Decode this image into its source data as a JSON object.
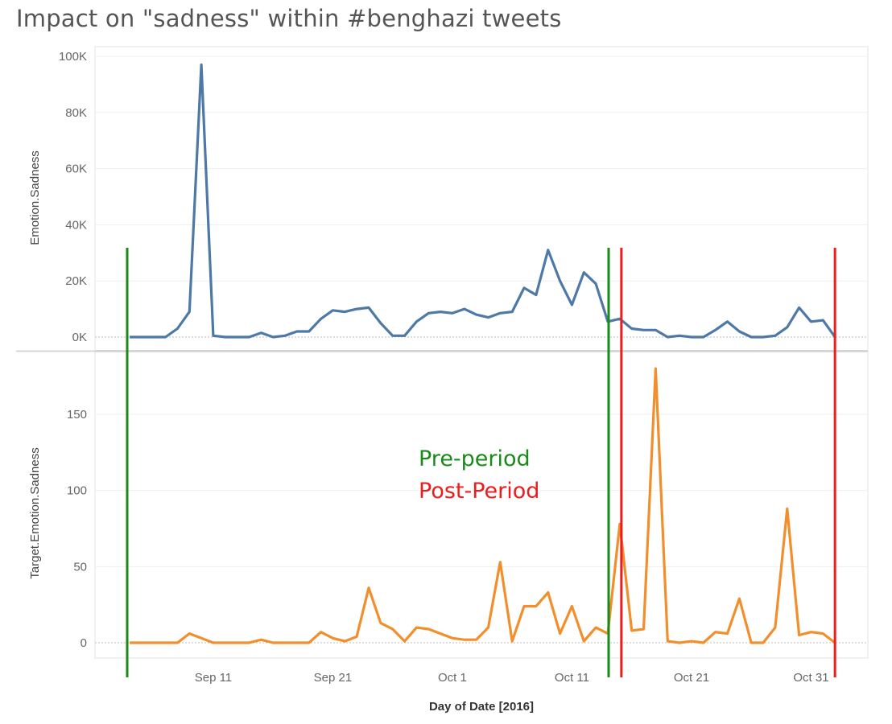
{
  "title": "Impact on \"sadness\" within #benghazi tweets",
  "chart_data": [
    {
      "type": "line",
      "title": "",
      "ylabel": "Emotion.Sadness",
      "xlabel": "Day of Date [2016]",
      "x_start": "2016-09-04",
      "x_end": "2016-11-02",
      "ylim": [
        0,
        100000
      ],
      "yticks": [
        0,
        20000,
        40000,
        60000,
        80000,
        100000
      ],
      "ytick_labels": [
        "0K",
        "20K",
        "40K",
        "60K",
        "80K",
        "100K"
      ],
      "grid": true,
      "color": "#4e79a7",
      "series": [
        {
          "name": "",
          "x": [
            "2016-09-04",
            "2016-09-05",
            "2016-09-06",
            "2016-09-07",
            "2016-09-08",
            "2016-09-09",
            "2016-09-10",
            "2016-09-11",
            "2016-09-12",
            "2016-09-13",
            "2016-09-14",
            "2016-09-15",
            "2016-09-16",
            "2016-09-17",
            "2016-09-18",
            "2016-09-19",
            "2016-09-20",
            "2016-09-21",
            "2016-09-22",
            "2016-09-23",
            "2016-09-24",
            "2016-09-25",
            "2016-09-26",
            "2016-09-27",
            "2016-09-28",
            "2016-09-29",
            "2016-09-30",
            "2016-10-01",
            "2016-10-02",
            "2016-10-03",
            "2016-10-04",
            "2016-10-05",
            "2016-10-06",
            "2016-10-07",
            "2016-10-08",
            "2016-10-09",
            "2016-10-10",
            "2016-10-11",
            "2016-10-12",
            "2016-10-13",
            "2016-10-14",
            "2016-10-15",
            "2016-10-16",
            "2016-10-17",
            "2016-10-18",
            "2016-10-19",
            "2016-10-20",
            "2016-10-21",
            "2016-10-22",
            "2016-10-23",
            "2016-10-24",
            "2016-10-25",
            "2016-10-26",
            "2016-10-27",
            "2016-10-28",
            "2016-10-29",
            "2016-10-30",
            "2016-10-31",
            "2016-11-01",
            "2016-11-02"
          ],
          "values": [
            0,
            0,
            0,
            0,
            3000,
            9000,
            97000,
            500,
            0,
            0,
            0,
            1500,
            0,
            500,
            2000,
            2000,
            6500,
            9500,
            9000,
            10000,
            10500,
            5000,
            500,
            500,
            5500,
            8500,
            9000,
            8500,
            10000,
            8000,
            7000,
            8500,
            9000,
            17500,
            15000,
            31000,
            20000,
            11500,
            23000,
            19000,
            5500,
            6500,
            3000,
            2500,
            2500,
            0,
            500,
            0,
            0,
            2500,
            5500,
            2000,
            0,
            0,
            500,
            3500,
            10500,
            5500,
            6000,
            0
          ]
        }
      ]
    },
    {
      "type": "line",
      "title": "",
      "ylabel": "Target.Emotion.Sadness",
      "xlabel": "Day of Date [2016]",
      "x_start": "2016-09-04",
      "x_end": "2016-11-02",
      "ylim": [
        -10,
        190
      ],
      "yticks": [
        0,
        50,
        100,
        150
      ],
      "ytick_labels": [
        "0",
        "50",
        "100",
        "150"
      ],
      "xtick_labels": [
        "Sep 11",
        "Sep 21",
        "Oct 1",
        "Oct 11",
        "Oct 21",
        "Oct 31"
      ],
      "grid": true,
      "color": "#f28e2b",
      "series": [
        {
          "name": "",
          "x": [
            "2016-09-04",
            "2016-09-05",
            "2016-09-06",
            "2016-09-07",
            "2016-09-08",
            "2016-09-09",
            "2016-09-10",
            "2016-09-11",
            "2016-09-12",
            "2016-09-13",
            "2016-09-14",
            "2016-09-15",
            "2016-09-16",
            "2016-09-17",
            "2016-09-18",
            "2016-09-19",
            "2016-09-20",
            "2016-09-21",
            "2016-09-22",
            "2016-09-23",
            "2016-09-24",
            "2016-09-25",
            "2016-09-26",
            "2016-09-27",
            "2016-09-28",
            "2016-09-29",
            "2016-09-30",
            "2016-10-01",
            "2016-10-02",
            "2016-10-03",
            "2016-10-04",
            "2016-10-05",
            "2016-10-06",
            "2016-10-07",
            "2016-10-08",
            "2016-10-09",
            "2016-10-10",
            "2016-10-11",
            "2016-10-12",
            "2016-10-13",
            "2016-10-14",
            "2016-10-15",
            "2016-10-16",
            "2016-10-17",
            "2016-10-18",
            "2016-10-19",
            "2016-10-20",
            "2016-10-21",
            "2016-10-22",
            "2016-10-23",
            "2016-10-24",
            "2016-10-25",
            "2016-10-26",
            "2016-10-27",
            "2016-10-28",
            "2016-10-29",
            "2016-10-30",
            "2016-10-31",
            "2016-11-01",
            "2016-11-02"
          ],
          "values": [
            0,
            0,
            0,
            0,
            0,
            6,
            3,
            0,
            0,
            0,
            0,
            2,
            0,
            0,
            0,
            0,
            7,
            3,
            1,
            4,
            36,
            13,
            9,
            1,
            10,
            9,
            6,
            3,
            2,
            2,
            10,
            53,
            1,
            24,
            24,
            33,
            6,
            24,
            1,
            10,
            6,
            78,
            8,
            9,
            180,
            1,
            0,
            1,
            0,
            7,
            6,
            29,
            0,
            0,
            10,
            88,
            5,
            7,
            6,
            0
          ]
        }
      ]
    }
  ],
  "annotations": {
    "pre_period_label": "Pre-period",
    "post_period_label": "Post-Period",
    "pre_color": "#1a8a1a",
    "post_color": "#ee1c1c",
    "pre_period_start": "2016-09-04",
    "pre_period_end": "2016-10-14",
    "post_period_start": "2016-10-15",
    "post_period_end": "2016-11-02"
  }
}
